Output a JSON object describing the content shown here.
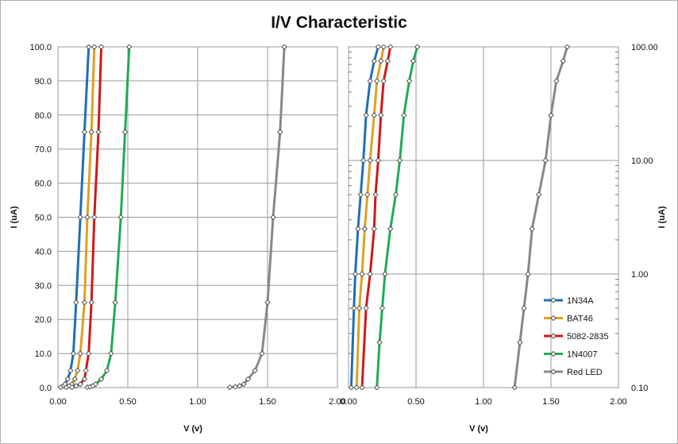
{
  "chart_data": [
    {
      "type": "line",
      "title": "I/V Characteristic",
      "xlabel": "V (v)",
      "ylabel": "I (uA)",
      "xlim": [
        0,
        2
      ],
      "ylim": [
        0,
        100
      ],
      "y_scale": "linear",
      "grid": true,
      "xticks": [
        "0.00",
        "0.50",
        "1.00",
        "1.50",
        "2.00"
      ],
      "yticks": [
        "0.0",
        "10.0",
        "20.0",
        "30.0",
        "40.0",
        "50.0",
        "60.0",
        "70.0",
        "80.0",
        "90.0",
        "100.0"
      ],
      "series": [
        {
          "name": "1N34A",
          "color": "#1f6fb4",
          "points": [
            [
              0.02,
              0.1
            ],
            [
              0.04,
              0.5
            ],
            [
              0.05,
              1
            ],
            [
              0.07,
              2.5
            ],
            [
              0.09,
              5
            ],
            [
              0.11,
              10
            ],
            [
              0.13,
              25
            ],
            [
              0.16,
              50
            ],
            [
              0.19,
              75
            ],
            [
              0.22,
              100
            ]
          ]
        },
        {
          "name": "BAT46",
          "color": "#e0a020",
          "points": [
            [
              0.06,
              0.1
            ],
            [
              0.08,
              0.5
            ],
            [
              0.1,
              1
            ],
            [
              0.12,
              2.5
            ],
            [
              0.14,
              5
            ],
            [
              0.16,
              10
            ],
            [
              0.19,
              25
            ],
            [
              0.21,
              50
            ],
            [
              0.24,
              75
            ],
            [
              0.26,
              100
            ]
          ]
        },
        {
          "name": "5082-2835",
          "color": "#d01818",
          "points": [
            [
              0.1,
              0.1
            ],
            [
              0.13,
              0.5
            ],
            [
              0.16,
              1
            ],
            [
              0.19,
              2.5
            ],
            [
              0.2,
              5
            ],
            [
              0.22,
              10
            ],
            [
              0.24,
              25
            ],
            [
              0.26,
              50
            ],
            [
              0.29,
              75
            ],
            [
              0.31,
              100
            ]
          ]
        },
        {
          "name": "1N4007",
          "color": "#22aa55",
          "points": [
            [
              0.21,
              0.1
            ],
            [
              0.23,
              0.25
            ],
            [
              0.25,
              0.5
            ],
            [
              0.27,
              1
            ],
            [
              0.31,
              2.5
            ],
            [
              0.35,
              5
            ],
            [
              0.38,
              10
            ],
            [
              0.41,
              25
            ],
            [
              0.45,
              50
            ],
            [
              0.48,
              75
            ],
            [
              0.51,
              100
            ]
          ]
        },
        {
          "name": "Red LED",
          "color": "#888888",
          "points": [
            [
              1.23,
              0.1
            ],
            [
              1.27,
              0.25
            ],
            [
              1.3,
              0.5
            ],
            [
              1.33,
              1
            ],
            [
              1.36,
              2.5
            ],
            [
              1.41,
              5
            ],
            [
              1.46,
              10
            ],
            [
              1.5,
              25
            ],
            [
              1.54,
              50
            ],
            [
              1.59,
              75
            ],
            [
              1.62,
              100
            ]
          ]
        }
      ]
    },
    {
      "type": "line",
      "xlabel": "V (v)",
      "ylabel": "I (uA)",
      "xlim": [
        0,
        2
      ],
      "ylim": [
        0.1,
        100
      ],
      "y_scale": "log",
      "grid": true,
      "xticks": [
        "0.00",
        "0.50",
        "1.00",
        "1.50",
        "2.00"
      ],
      "yticks": [
        "0.10",
        "1.00",
        "10.00",
        "100.00"
      ],
      "legend": {
        "placement": "bottom-right",
        "entries": [
          "1N34A",
          "BAT46",
          "5082-2835",
          "1N4007",
          "Red LED"
        ]
      },
      "series_ref": "same data as linear-scale panel"
    }
  ]
}
